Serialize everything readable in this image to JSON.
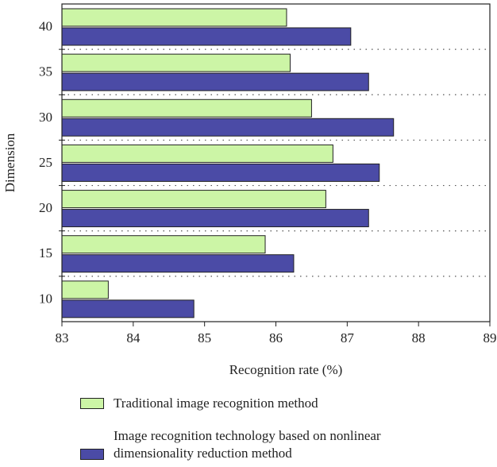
{
  "chart_data": {
    "type": "bar",
    "orientation": "horizontal",
    "xlabel": "Recognition rate (%)",
    "ylabel": "Dimension",
    "categories": [
      "10",
      "15",
      "20",
      "25",
      "30",
      "35",
      "40"
    ],
    "series": [
      {
        "name": "Traditional image recognition method",
        "color": "#ccf5a6",
        "values": [
          83.65,
          85.85,
          86.7,
          86.8,
          86.5,
          86.2,
          86.15
        ]
      },
      {
        "name": "Image recognition technology based on nonlinear dimensionality reduction method",
        "color": "#4b4ba6",
        "values": [
          84.85,
          86.25,
          87.3,
          87.45,
          87.65,
          87.3,
          87.05
        ]
      }
    ],
    "xlim": [
      83,
      89
    ],
    "xticks": [
      83,
      84,
      85,
      86,
      87,
      88,
      89
    ]
  }
}
